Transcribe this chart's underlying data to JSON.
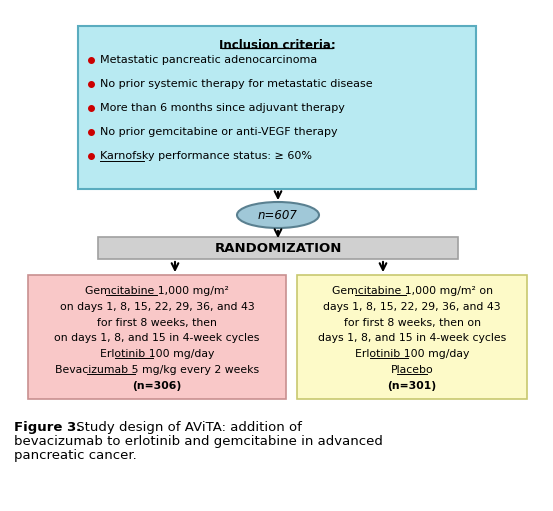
{
  "inclusion_title": "Inclusion criteria:",
  "inclusion_bullets": [
    "Metastatic pancreatic adenocarcinoma",
    "No prior systemic therapy for metastatic disease",
    "More than 6 months since adjuvant therapy",
    "No prior gemcitabine or anti-VEGF therapy",
    "Karnofsky performance status: ≥ 60%"
  ],
  "n_total": "n=607",
  "randomization_label": "RANDOMIZATION",
  "left_box_lines": [
    "Gemcitabine 1,000 mg/m²",
    "on days 1, 8, 15, 22, 29, 36, and 43",
    "for first 8 weeks, then",
    "on days 1, 8, and 15 in 4-week cycles",
    "Erlotinib 100 mg/day",
    "Bevacizumab 5 mg/kg every 2 weeks",
    "(n=306)"
  ],
  "right_box_lines": [
    "Gemcitabine 1,000 mg/m² on",
    "days 1, 8, 15, 22, 29, 36, and 43",
    "for first 8 weeks, then on",
    "days 1, 8, and 15 in 4-week cycles",
    "Erlotinib 100 mg/day",
    "Placebo",
    "(n=301)"
  ],
  "inclusion_bg": "#b8eaf2",
  "inclusion_border": "#5aacbf",
  "left_box_bg": "#f9c8c8",
  "left_box_border": "#c89090",
  "right_box_bg": "#fdfac8",
  "right_box_border": "#c8c870",
  "randomization_bg": "#d0d0d0",
  "randomization_border": "#a0a0a0",
  "oval_bg": "#a0c8d8",
  "oval_border": "#5a8090",
  "bullet_color": "#cc0000",
  "text_color": "#000000",
  "figure_label": "Figure 3.",
  "figure_caption": " Study design of AViTA: addition of bevacizumab to erlotinib and gemcitabine in advanced pancreatic cancer."
}
